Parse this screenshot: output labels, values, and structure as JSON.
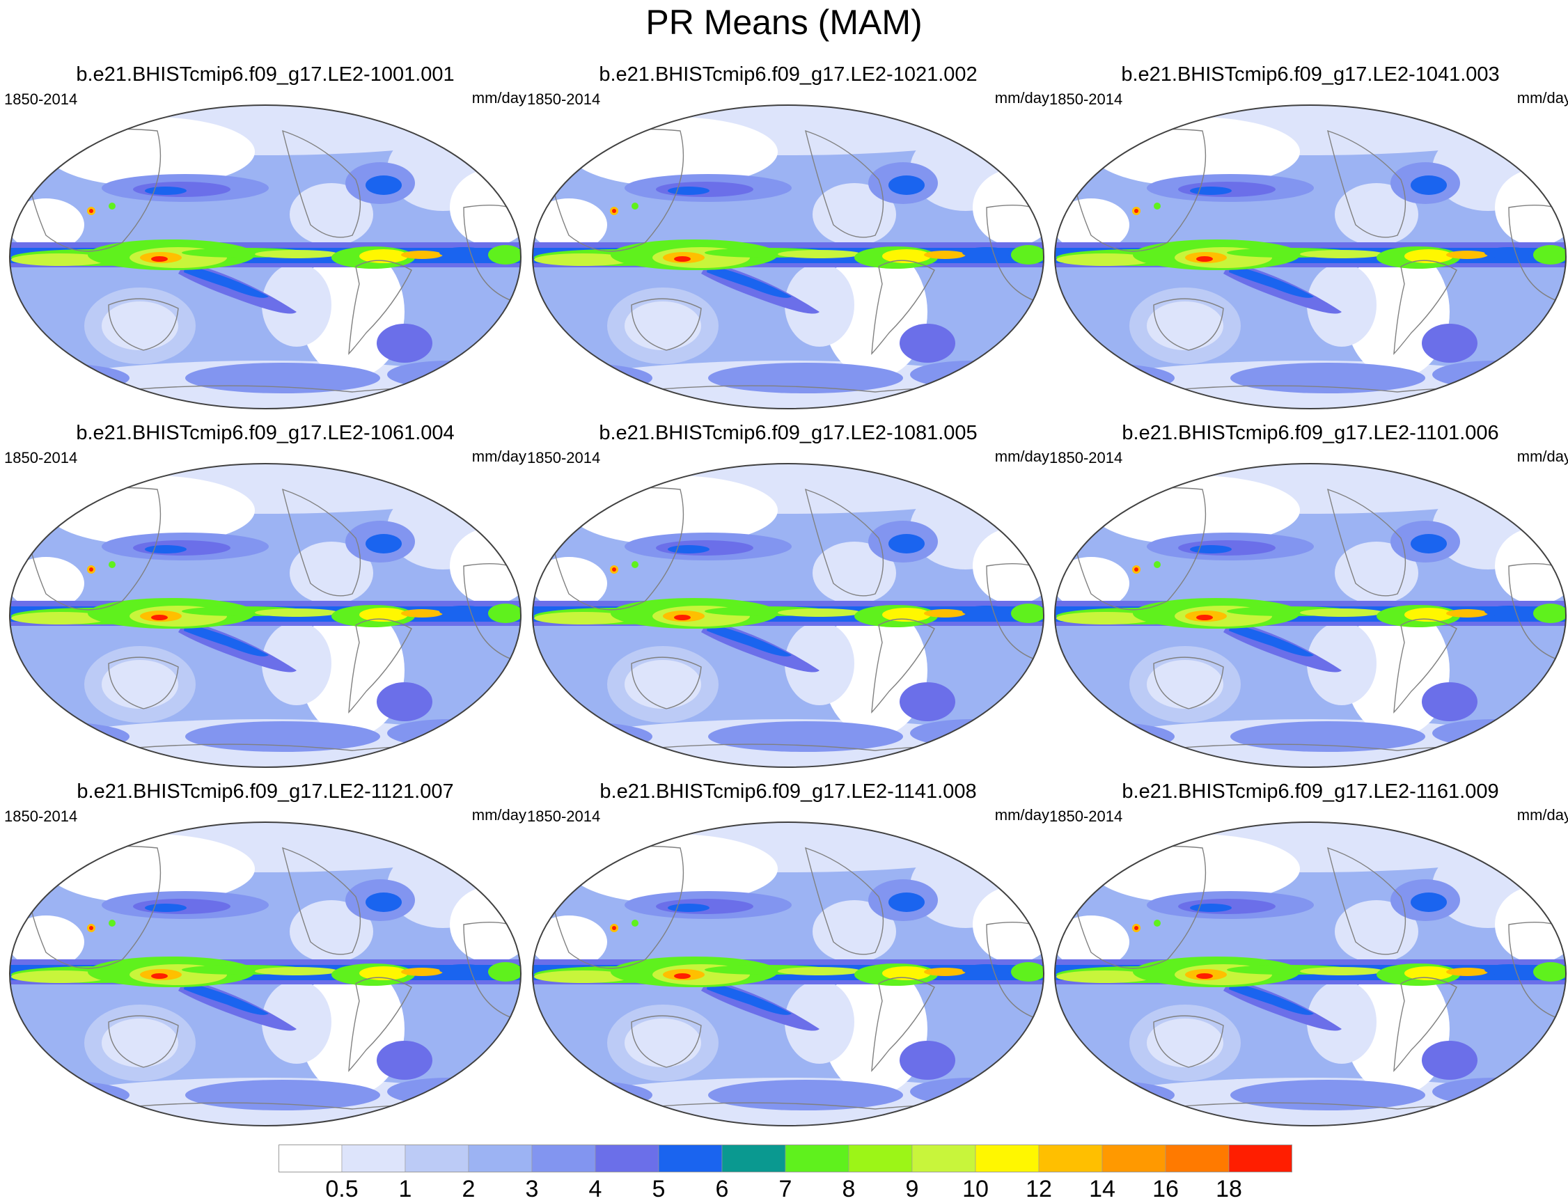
{
  "title": "PR Means (MAM)",
  "panels": [
    {
      "title": "b.e21.BHISTcmip6.f09_g17.LE2-1001.001",
      "left_label": "1850-2014",
      "right_label": "mm/day"
    },
    {
      "title": "b.e21.BHISTcmip6.f09_g17.LE2-1021.002",
      "left_label": "1850-2014",
      "right_label": "mm/day"
    },
    {
      "title": "b.e21.BHISTcmip6.f09_g17.LE2-1041.003",
      "left_label": "1850-2014",
      "right_label": "mm/day"
    },
    {
      "title": "b.e21.BHISTcmip6.f09_g17.LE2-1061.004",
      "left_label": "1850-2014",
      "right_label": "mm/day"
    },
    {
      "title": "b.e21.BHISTcmip6.f09_g17.LE2-1081.005",
      "left_label": "1850-2014",
      "right_label": "mm/day"
    },
    {
      "title": "b.e21.BHISTcmip6.f09_g17.LE2-1101.006",
      "left_label": "1850-2014",
      "right_label": "mm/day"
    },
    {
      "title": "b.e21.BHISTcmip6.f09_g17.LE2-1121.007",
      "left_label": "1850-2014",
      "right_label": "mm/day"
    },
    {
      "title": "b.e21.BHISTcmip6.f09_g17.LE2-1141.008",
      "left_label": "1850-2014",
      "right_label": "mm/day"
    },
    {
      "title": "b.e21.BHISTcmip6.f09_g17.LE2-1161.009",
      "left_label": "1850-2014",
      "right_label": "mm/day"
    }
  ],
  "colorbar": {
    "labels": [
      "0.5",
      "1",
      "2",
      "3",
      "4",
      "5",
      "6",
      "7",
      "8",
      "9",
      "10",
      "12",
      "14",
      "16",
      "18"
    ],
    "colors": [
      "#ffffff",
      "#dde4fb",
      "#bccbf6",
      "#9cb3f3",
      "#8295f0",
      "#6b6fe9",
      "#1a64ef",
      "#0a9990",
      "#5ff11d",
      "#9cf517",
      "#c8f53b",
      "#fff700",
      "#ffbf00",
      "#ff9900",
      "#ff7a00",
      "#ff1e00"
    ]
  },
  "colors": {
    "land_outline": "#808080",
    "globe_outline": "#404040"
  }
}
